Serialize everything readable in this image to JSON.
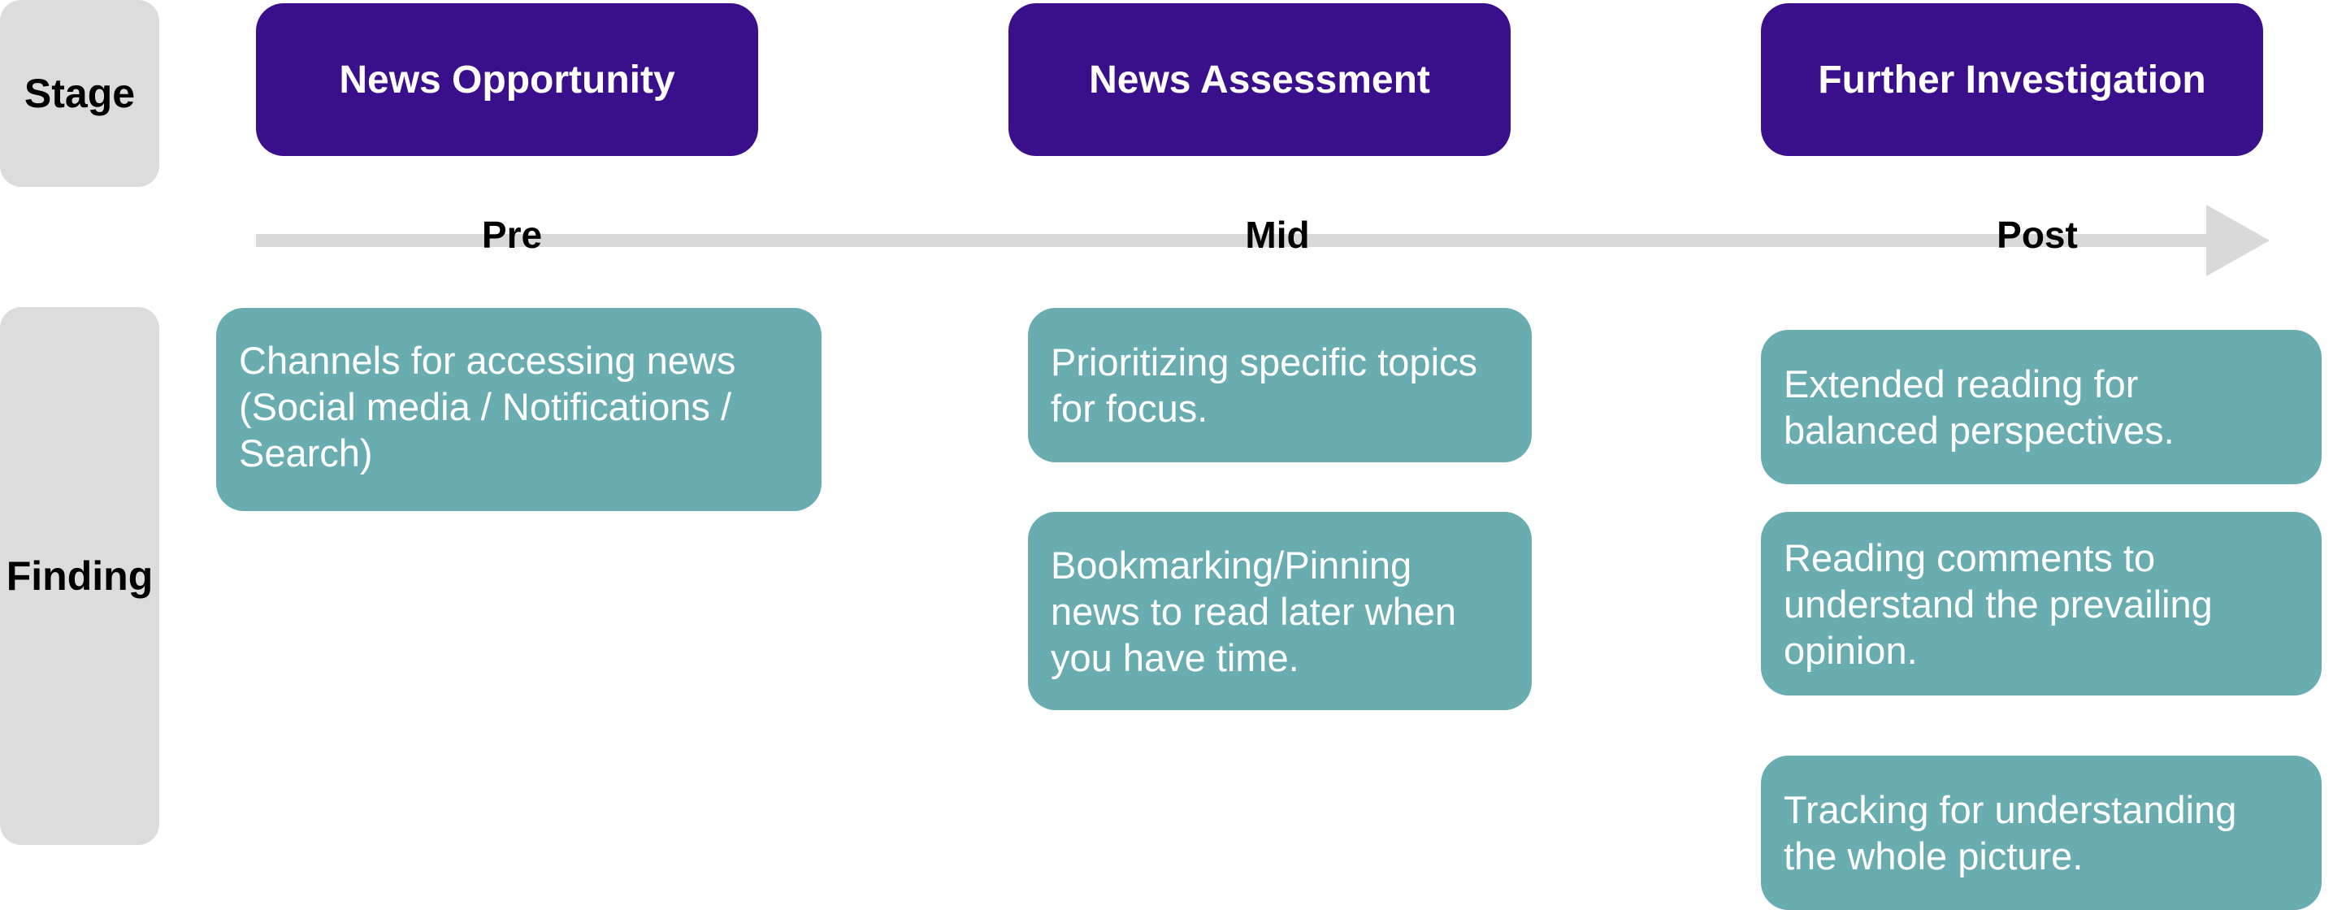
{
  "labels": {
    "stage": "Stage",
    "finding": "Finding"
  },
  "stages": [
    "News Opportunity",
    "News Assessment",
    "Further Investigation"
  ],
  "timeline": {
    "phases": [
      "Pre",
      "Mid",
      "Post"
    ]
  },
  "findings": {
    "pre": [
      "Channels for accessing news\n (Social media / Notifications /\nSearch)"
    ],
    "mid": [
      "Prioritizing specific topics\nfor focus.",
      "Bookmarking/Pinning\nnews to read later when\nyou have time."
    ],
    "post": [
      "Extended reading for\nbalanced perspectives.",
      "Reading comments to\nunderstand the prevailing\nopinion.",
      "Tracking for understanding\nthe whole picture."
    ]
  },
  "colors": {
    "stage_fill": "#3a0f8c",
    "finding_fill": "#6aadb1",
    "side_label_fill": "#dcdcdc",
    "timeline_arrow": "#d9d9d9"
  }
}
